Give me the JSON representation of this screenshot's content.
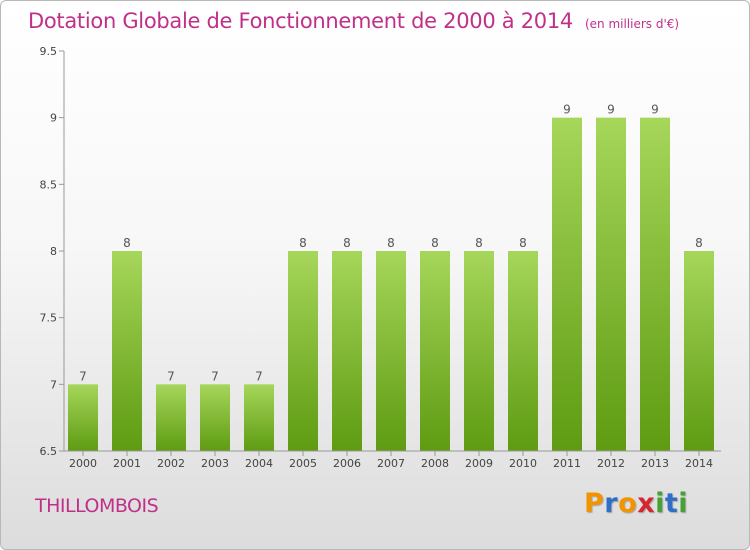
{
  "header": {
    "title": "Dotation Globale de Fonctionnement de 2000 à 2014",
    "subtitle": "(en milliers d'€)"
  },
  "footer": {
    "commune": "THILLOMBOIS",
    "brand_letters": [
      {
        "char": "P",
        "color": "#f29400"
      },
      {
        "char": "r",
        "color": "#2f6fc7"
      },
      {
        "char": "o",
        "color": "#f29400"
      },
      {
        "char": "x",
        "color": "#d6262e"
      },
      {
        "char": "i",
        "color": "#45a132"
      },
      {
        "char": "t",
        "color": "#2f6fc7"
      },
      {
        "char": "i",
        "color": "#45a132"
      }
    ]
  },
  "colors": {
    "title": "#c0308a",
    "bar_top": "#a6d65a",
    "bar_bottom": "#5e9b12"
  },
  "chart_data": {
    "type": "bar",
    "categories": [
      "2000",
      "2001",
      "2002",
      "2003",
      "2004",
      "2005",
      "2006",
      "2007",
      "2008",
      "2009",
      "2010",
      "2011",
      "2012",
      "2013",
      "2014"
    ],
    "values": [
      7,
      8,
      7,
      7,
      7,
      8,
      8,
      8,
      8,
      8,
      8,
      9,
      9,
      9,
      8
    ],
    "labels": [
      "7",
      "8",
      "7",
      "7",
      "7",
      "8",
      "8",
      "8",
      "8",
      "8",
      "8",
      "9",
      "9",
      "9",
      "8"
    ],
    "yticks": [
      6.5,
      7,
      7.5,
      8,
      8.5,
      9,
      9.5
    ],
    "ytick_labels": [
      "6.5",
      "7",
      "7.5",
      "8",
      "8.5",
      "9",
      "9.5"
    ],
    "ylim": [
      6.5,
      9.5
    ],
    "grid": false,
    "legend": "none"
  }
}
